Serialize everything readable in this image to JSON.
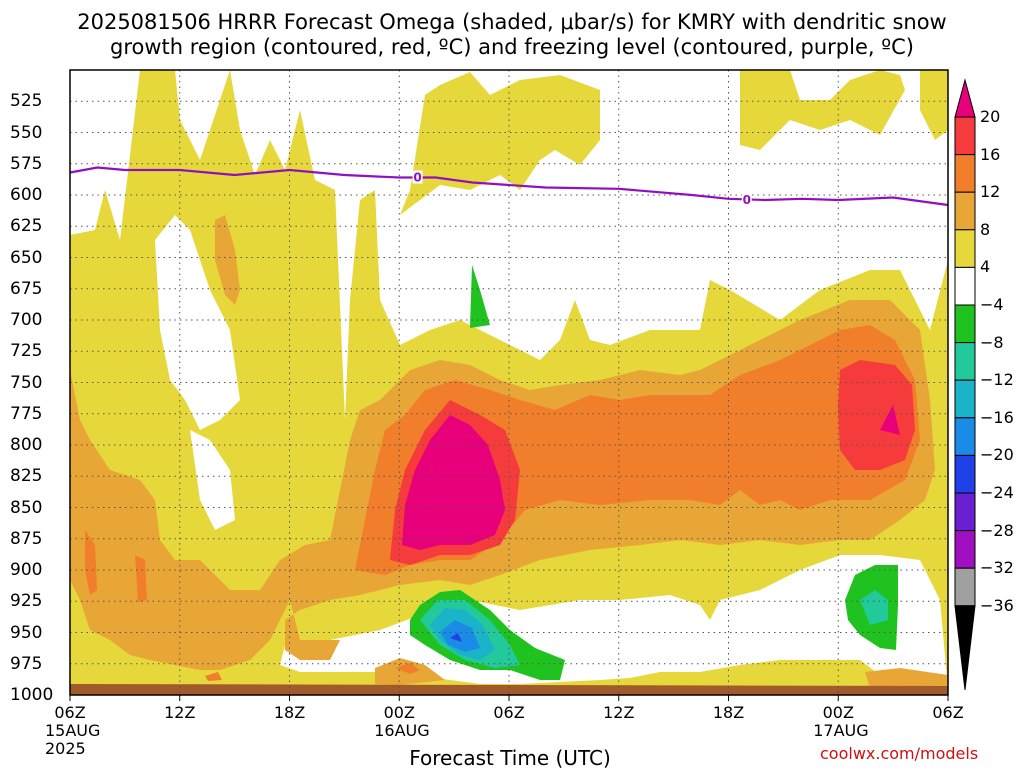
{
  "title_line1": "2025081506 HRRR Forecast Omega (shaded, μbar/s) for KMRY with dendritic snow",
  "title_line2": "growth region (contoured, red, ºC) and freezing level (contoured, purple, ºC)",
  "credit": "coolwx.com/models",
  "chart_data": {
    "type": "heatmap",
    "xlabel": "Forecast Time (UTC)",
    "ylabel": "",
    "x_ticks": [
      "06Z",
      "12Z",
      "18Z",
      "00Z",
      "06Z",
      "12Z",
      "18Z",
      "00Z",
      "06Z"
    ],
    "x_tick_hours": [
      0,
      6,
      12,
      18,
      24,
      30,
      36,
      42,
      48
    ],
    "x_date_labels": [
      {
        "hour": 0,
        "lines": [
          "15AUG",
          "2025"
        ]
      },
      {
        "hour": 18,
        "lines": [
          "16AUG"
        ]
      },
      {
        "hour": 42,
        "lines": [
          "17AUG"
        ]
      }
    ],
    "y_ticks": [
      525,
      550,
      575,
      600,
      625,
      650,
      675,
      700,
      725,
      750,
      775,
      800,
      825,
      850,
      875,
      900,
      925,
      950,
      975,
      1000
    ],
    "ylim": [
      500,
      1000
    ],
    "xlim": [
      0,
      48
    ],
    "colorbar_levels": [
      20,
      16,
      12,
      8,
      4,
      -4,
      -8,
      -12,
      -16,
      -20,
      -24,
      -28,
      -32,
      -36
    ],
    "colorbar_colors": [
      "#e8007a",
      "#f53b3b",
      "#f07e2a",
      "#e8a636",
      "#e6d83a",
      "#ffffff",
      "#1fc21f",
      "#22c99a",
      "#1ab3c8",
      "#1a8ce8",
      "#2040e8",
      "#6a20d0",
      "#a010c0",
      "#a0a0a0",
      "#000000"
    ],
    "shaded_regions": [
      {
        "range": "4 to 8",
        "description": "broad weak ascent",
        "color": "#e6d83a"
      },
      {
        "range": "8 to 12",
        "color": "#e8a636"
      },
      {
        "range": "12 to 16",
        "color": "#f07e2a"
      },
      {
        "range": "16 to 20",
        "color": "#f53b3b"
      },
      {
        "range": ">20",
        "color": "#e8007a"
      },
      {
        "range": "-4 to -8",
        "color": "#1fc21f"
      },
      {
        "range": "-8 to -12",
        "color": "#22c99a"
      }
    ],
    "freezing_level": {
      "color": "#9010c0",
      "label": "0",
      "points": [
        [
          0,
          582
        ],
        [
          1.5,
          578
        ],
        [
          3,
          580
        ],
        [
          6,
          580
        ],
        [
          9,
          584
        ],
        [
          12,
          580
        ],
        [
          15,
          584
        ],
        [
          18,
          586
        ],
        [
          20,
          586
        ],
        [
          22,
          590
        ],
        [
          26,
          594
        ],
        [
          30,
          595
        ],
        [
          34,
          600
        ],
        [
          36,
          603
        ],
        [
          38,
          604
        ],
        [
          40,
          603
        ],
        [
          42,
          604
        ],
        [
          45,
          602
        ],
        [
          48,
          608
        ]
      ],
      "label_positions": [
        [
          19,
          586
        ],
        [
          37,
          604
        ]
      ]
    },
    "ground_color": "#a05a2c",
    "grid": true
  },
  "ylabels": [
    "525",
    "550",
    "575",
    "600",
    "625",
    "650",
    "675",
    "700",
    "725",
    "750",
    "775",
    "800",
    "825",
    "850",
    "875",
    "900",
    "925",
    "950",
    "975",
    "1000"
  ],
  "cb_labels": [
    "20",
    "16",
    "12",
    "8",
    "4",
    "−4",
    "−8",
    "−12",
    "−16",
    "−20",
    "−24",
    "−28",
    "−32",
    "−36"
  ]
}
